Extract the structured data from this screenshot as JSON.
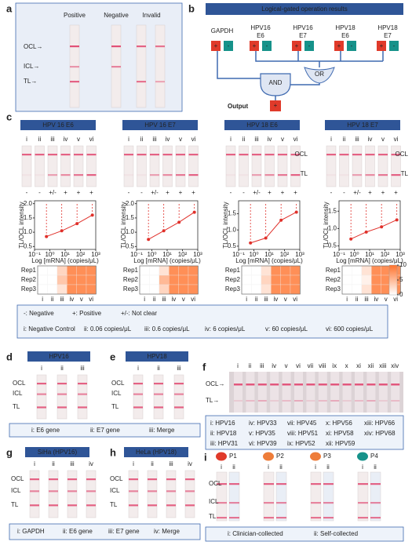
{
  "panel_a": {
    "label": "a",
    "columns": [
      "Positive",
      "Negative",
      "Invalid"
    ],
    "lines": [
      "OCL→",
      "ICL→",
      "TL→"
    ]
  },
  "panel_b": {
    "label": "b",
    "title": "Logical-gated operation results",
    "inputs": [
      [
        "GAPDH"
      ],
      [
        "HPV16",
        "E6"
      ],
      [
        "HPV16",
        "E7"
      ],
      [
        "HPV18",
        "E6"
      ],
      [
        "HPV18",
        "E7"
      ]
    ],
    "plus": "+",
    "minus": "-",
    "or": "OR",
    "and": "AND",
    "output": "Output"
  },
  "panel_c": {
    "label": "c",
    "lanes": [
      "i",
      "ii",
      "iii",
      "iv",
      "v",
      "vi"
    ],
    "strip_labels": [
      "OCL",
      "TL"
    ],
    "y_label": "TL/OCL intensity",
    "x_label": "Log [mRNA] (copies/μL)",
    "reps": [
      "Rep1",
      "Rep2",
      "Rep3"
    ],
    "colorbar": {
      "lim": [
        0,
        10
      ],
      "ticks": [
        0,
        5,
        10
      ]
    },
    "plots": [
      {
        "title": "HPV 16 E6",
        "type": "scatter",
        "signs": [
          "-",
          "-",
          "+/-",
          "+",
          "+",
          "+"
        ],
        "x": [
          0.6,
          6,
          60,
          600
        ],
        "values": [
          0.85,
          1.05,
          1.3,
          1.6
        ],
        "xlim": [
          0.1,
          1000
        ],
        "xticks": [
          {
            "value": 0.1,
            "label": "10⁻¹"
          },
          {
            "value": 1,
            "label": "10⁰"
          },
          {
            "value": 10,
            "label": "10¹"
          },
          {
            "value": 100,
            "label": "10²"
          },
          {
            "value": 1000,
            "label": "10³"
          }
        ],
        "log_x": true,
        "ylim": [
          0.4,
          2.1
        ],
        "yticks": [
          0.5,
          {
            "value": 1,
            "label": "1.0"
          },
          1.5,
          {
            "value": 2,
            "label": "2.0"
          }
        ],
        "color": "#e0302a",
        "heatmap": [
          [
            0,
            0,
            3,
            8,
            8,
            8
          ],
          [
            0,
            0,
            4,
            8,
            8,
            8
          ],
          [
            0,
            0,
            2,
            8,
            8,
            8
          ]
        ]
      },
      {
        "title": "HPV 16 E7",
        "type": "scatter",
        "signs": [
          "-",
          "-",
          "+/-",
          "+",
          "+",
          "+"
        ],
        "x": [
          0.6,
          6,
          60,
          600
        ],
        "values": [
          0.75,
          1.05,
          1.35,
          1.7
        ],
        "xlim": [
          0.1,
          1000
        ],
        "xticks": [
          {
            "value": 0.1,
            "label": "10⁻¹"
          },
          {
            "value": 1,
            "label": "10⁰"
          },
          {
            "value": 10,
            "label": "10¹"
          },
          {
            "value": 100,
            "label": "10²"
          },
          {
            "value": 1000,
            "label": "10³"
          }
        ],
        "log_x": true,
        "ylim": [
          0.4,
          2.1
        ],
        "yticks": [
          0.5,
          {
            "value": 1,
            "label": "1.0"
          },
          1.5,
          {
            "value": 2,
            "label": "2.0"
          }
        ],
        "color": "#e0302a",
        "heatmap": [
          [
            0,
            0,
            2,
            8,
            8,
            8
          ],
          [
            0,
            0,
            5,
            8,
            8,
            8
          ],
          [
            0,
            0,
            3,
            8,
            8,
            8
          ]
        ]
      },
      {
        "title": "HPV 18 E6",
        "type": "scatter",
        "signs": [
          "-",
          "-",
          "+/-",
          "+",
          "+",
          "+"
        ],
        "x": [
          0.6,
          6,
          60,
          600
        ],
        "values": [
          0.6,
          0.75,
          1.3,
          1.55
        ],
        "xlim": [
          0.1,
          1000
        ],
        "xticks": [
          {
            "value": 0.1,
            "label": "10⁻¹"
          },
          {
            "value": 1,
            "label": "10⁰"
          },
          {
            "value": 10,
            "label": "10¹"
          },
          {
            "value": 100,
            "label": "10²"
          },
          {
            "value": 1000,
            "label": "10³"
          }
        ],
        "log_x": true,
        "ylim": [
          0.4,
          1.9
        ],
        "yticks": [
          0.5,
          {
            "value": 1,
            "label": "1.0"
          },
          1.5
        ],
        "color": "#e0302a",
        "heatmap": [
          [
            0,
            0,
            2,
            8,
            8,
            8
          ],
          [
            0,
            0,
            3,
            8,
            8,
            8
          ],
          [
            0,
            0,
            2,
            8,
            8,
            8
          ]
        ]
      },
      {
        "title": "HPV 18 E7",
        "type": "scatter",
        "signs": [
          "-",
          "-",
          "+/-",
          "+",
          "+",
          "+"
        ],
        "x": [
          0.6,
          6,
          60,
          600
        ],
        "values": [
          0.7,
          0.9,
          1.05,
          1.25
        ],
        "xlim": [
          0.1,
          1000
        ],
        "xticks": [
          {
            "value": 0.1,
            "label": "10⁻¹"
          },
          {
            "value": 1,
            "label": "10⁰"
          },
          {
            "value": 10,
            "label": "10¹"
          },
          {
            "value": 100,
            "label": "10²"
          },
          {
            "value": 1000,
            "label": "10³"
          }
        ],
        "log_x": true,
        "ylim": [
          0.4,
          1.8
        ],
        "yticks": [
          0.5,
          {
            "value": 1,
            "label": "1.0"
          },
          1.5
        ],
        "color": "#e0302a",
        "heatmap": [
          [
            0,
            0,
            2,
            8,
            8,
            8
          ],
          [
            0,
            0,
            1,
            8,
            8,
            8
          ],
          [
            0,
            0,
            2,
            8,
            8,
            8
          ]
        ]
      }
    ],
    "legend": {
      "signs": [
        "-: Negative",
        "+: Positive",
        "+/-: Not clear"
      ],
      "lanes": [
        "i: Negative Control",
        "ii: 0.06 copies/μL",
        "iii: 0.6 copies/μL",
        "iv: 6 copies/μL",
        "v: 60 copies/μL",
        "vi: 600 copies/μL"
      ]
    }
  },
  "panel_d": {
    "label": "d",
    "title": "HPV16",
    "lanes": [
      "i",
      "ii",
      "iii"
    ],
    "lines": [
      "OCL",
      "ICL",
      "TL"
    ]
  },
  "panel_e": {
    "label": "e",
    "title": "HPV18",
    "lanes": [
      "i",
      "ii",
      "iii"
    ],
    "lines": [
      "OCL",
      "ICL",
      "TL"
    ]
  },
  "caption_de": [
    "i: E6 gene",
    "ii: E7 gene",
    "iii: Merge"
  ],
  "panel_f": {
    "label": "f",
    "lanes": [
      "i",
      "ii",
      "iii",
      "iv",
      "v",
      "vi",
      "vii",
      "viii",
      "ix",
      "x",
      "xi",
      "xii",
      "xiii",
      "xiv"
    ],
    "lines": [
      "OCL→",
      "TL→"
    ],
    "caption": [
      "i: HPV16",
      "ii: HPV18",
      "iii: HPV31",
      "iv: HPV33",
      "v: HPV35",
      "vi: HPV39",
      "vii: HPV45",
      "viii: HPV51",
      "ix: HPV52",
      "x: HPV56",
      "xi: HPV58",
      "xii: HPV59",
      "xiii: HPV66",
      "xiv: HPV68"
    ]
  },
  "panel_g": {
    "label": "g",
    "title": "SiHa (HPV16)",
    "lanes": [
      "i",
      "ii",
      "iii",
      "iv"
    ],
    "lines": [
      "OCL",
      "ICL",
      "TL"
    ]
  },
  "panel_h": {
    "label": "h",
    "title": "HeLa (HPV18)",
    "lanes": [
      "i",
      "ii",
      "iii",
      "iv"
    ],
    "lines": [
      "OCL",
      "ICL",
      "TL"
    ]
  },
  "caption_gh": [
    "i: GAPDH",
    "ii: E6 gene",
    "iii: E7 gene",
    "iv: Merge"
  ],
  "panel_i": {
    "label": "i",
    "patients": [
      "P1",
      "P2",
      "P3",
      "P4"
    ],
    "lanes": [
      "i",
      "ii"
    ],
    "lines": [
      "OCL",
      "ICL",
      "TL"
    ],
    "caption": [
      "i: Clinician-collected",
      "ii: Self-collected"
    ]
  }
}
